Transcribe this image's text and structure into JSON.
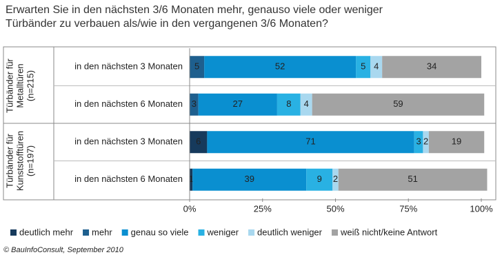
{
  "chart_data": {
    "type": "stacked-bar-horizontal",
    "title": [
      "Erwarten Sie in den nächsten 3/6 Monaten mehr, genauso viele oder weniger",
      "Türbänder zu verbauen als/wie in den vergangenen 3/6 Monaten?"
    ],
    "groups": [
      {
        "label": [
          "Türbänder für",
          "Metalltüren",
          "(n=215)"
        ],
        "rows": [
          0,
          1
        ]
      },
      {
        "label": [
          "Türbänder für",
          "Kunststofftüren",
          "(n=197)"
        ],
        "rows": [
          2,
          3
        ]
      }
    ],
    "categories": [
      "in den nächsten 3 Monaten",
      "in den nächsten 6 Monaten",
      "in den nächsten 3 Monaten",
      "in den nächsten 6 Monaten"
    ],
    "series": [
      {
        "name": "deutlich mehr",
        "color": "#163a5c",
        "values": [
          null,
          null,
          6,
          1
        ]
      },
      {
        "name": "mehr",
        "color": "#1e5f8e",
        "values": [
          5,
          3,
          null,
          null
        ]
      },
      {
        "name": "genau so viele",
        "color": "#0a8fd0",
        "values": [
          52,
          27,
          71,
          39
        ]
      },
      {
        "name": "weniger",
        "color": "#29b1e3",
        "values": [
          5,
          8,
          3,
          9
        ]
      },
      {
        "name": "deutlich weniger",
        "color": "#a9d8ef",
        "values": [
          4,
          4,
          2,
          2
        ]
      },
      {
        "name": "weiß nicht/keine Antwort",
        "color": "#a3a3a3",
        "values": [
          34,
          59,
          19,
          51
        ]
      }
    ],
    "xlim": [
      0,
      100
    ],
    "xticks": [
      {
        "value": 0,
        "label": "0%"
      },
      {
        "value": 25,
        "label": "25%"
      },
      {
        "value": 50,
        "label": "50%"
      },
      {
        "value": 75,
        "label": "75%"
      },
      {
        "value": 100,
        "label": "100%"
      }
    ],
    "source": "© BauInfoConsult, September 2010"
  }
}
